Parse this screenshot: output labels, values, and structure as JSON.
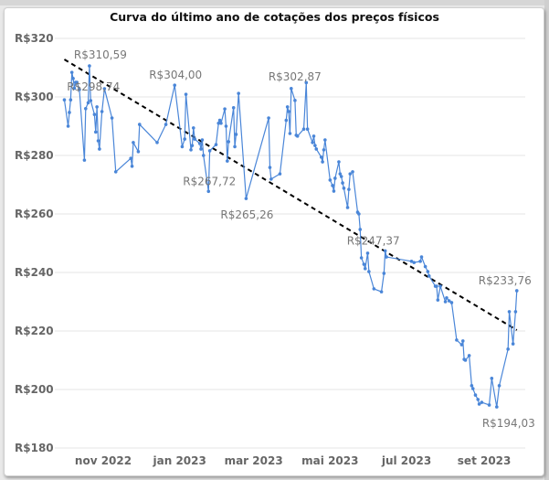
{
  "chart_data": {
    "type": "line",
    "title": "Curva do último ano de cotações dos preços físicos",
    "xlabel": "",
    "ylabel": "",
    "ylim": [
      180,
      320
    ],
    "y_ticks": [
      180,
      200,
      220,
      240,
      260,
      280,
      300,
      320
    ],
    "y_tick_labels": [
      "R$180",
      "R$200",
      "R$220",
      "R$240",
      "R$260",
      "R$280",
      "R$300",
      "R$320"
    ],
    "x_ticks": [
      {
        "date": "2022-11-01",
        "label": "nov 2022"
      },
      {
        "date": "2023-01-01",
        "label": "jan 2023"
      },
      {
        "date": "2023-03-01",
        "label": "mar 2023"
      },
      {
        "date": "2023-05-01",
        "label": "mai 2023"
      },
      {
        "date": "2023-07-01",
        "label": "jul 2023"
      },
      {
        "date": "2023-09-01",
        "label": "set 2023"
      }
    ],
    "grid": true,
    "colors": {
      "series": "#4a86d8",
      "trend": "#000000",
      "grid": "#e6e6e6"
    },
    "series": [
      {
        "points": [
          [
            "2022-10-01",
            299.0
          ],
          [
            "2022-10-04",
            290.0
          ],
          [
            "2022-10-05",
            294.7
          ],
          [
            "2022-10-06",
            299.0
          ],
          [
            "2022-10-07",
            308.4
          ],
          [
            "2022-10-08",
            306.3
          ],
          [
            "2022-10-09",
            303.0
          ],
          [
            "2022-10-10",
            305.0
          ],
          [
            "2022-10-11",
            305.0
          ],
          [
            "2022-10-13",
            302.5
          ],
          [
            "2022-10-17",
            278.4
          ],
          [
            "2022-10-18",
            296.0
          ],
          [
            "2022-10-20",
            298.0
          ],
          [
            "2022-10-21",
            310.59
          ],
          [
            "2022-10-22",
            298.74
          ],
          [
            "2022-10-25",
            294.0
          ],
          [
            "2022-10-26",
            288.0
          ],
          [
            "2022-10-27",
            296.6
          ],
          [
            "2022-10-28",
            285.0
          ],
          [
            "2022-10-29",
            282.2
          ],
          [
            "2022-10-31",
            295.0
          ],
          [
            "2022-11-02",
            302.8
          ],
          [
            "2022-11-08",
            292.8
          ],
          [
            "2022-11-11",
            274.4
          ],
          [
            "2022-11-23",
            279.0
          ],
          [
            "2022-11-24",
            276.3
          ],
          [
            "2022-11-25",
            284.4
          ],
          [
            "2022-11-29",
            281.3
          ],
          [
            "2022-11-30",
            290.6
          ],
          [
            "2022-12-14",
            284.4
          ],
          [
            "2022-12-21",
            290.6
          ],
          [
            "2022-12-28",
            304.0
          ],
          [
            "2023-01-03",
            283.0
          ],
          [
            "2023-01-05",
            285.6
          ],
          [
            "2023-01-06",
            300.9
          ],
          [
            "2023-01-10",
            281.9
          ],
          [
            "2023-01-11",
            283.4
          ],
          [
            "2023-01-12",
            289.4
          ],
          [
            "2023-01-13",
            285.6
          ],
          [
            "2023-01-17",
            284.1
          ],
          [
            "2023-01-18",
            282.2
          ],
          [
            "2023-01-19",
            285.3
          ],
          [
            "2023-01-20",
            280.0
          ],
          [
            "2023-01-24",
            267.72
          ],
          [
            "2023-01-25",
            281.6
          ],
          [
            "2023-01-30",
            283.7
          ],
          [
            "2023-02-01",
            291.0
          ],
          [
            "2023-02-02",
            292.0
          ],
          [
            "2023-02-03",
            291.0
          ],
          [
            "2023-02-06",
            295.9
          ],
          [
            "2023-02-07",
            290.0
          ],
          [
            "2023-02-08",
            278.1
          ],
          [
            "2023-02-09",
            284.7
          ],
          [
            "2023-02-13",
            296.3
          ],
          [
            "2023-02-14",
            283.0
          ],
          [
            "2023-02-15",
            287.2
          ],
          [
            "2023-02-17",
            301.2
          ],
          [
            "2023-02-23",
            265.26
          ],
          [
            "2023-03-13",
            292.8
          ],
          [
            "2023-03-14",
            275.9
          ],
          [
            "2023-03-15",
            271.9
          ],
          [
            "2023-03-22",
            273.7
          ],
          [
            "2023-03-27",
            292.0
          ],
          [
            "2023-03-28",
            296.6
          ],
          [
            "2023-03-29",
            295.0
          ],
          [
            "2023-03-30",
            287.5
          ],
          [
            "2023-03-31",
            302.87
          ],
          [
            "2023-04-03",
            298.8
          ],
          [
            "2023-04-04",
            286.9
          ],
          [
            "2023-04-05",
            286.6
          ],
          [
            "2023-04-10",
            289.0
          ],
          [
            "2023-04-12",
            304.9
          ],
          [
            "2023-04-13",
            289.0
          ],
          [
            "2023-04-17",
            284.4
          ],
          [
            "2023-04-18",
            286.6
          ],
          [
            "2023-04-19",
            283.4
          ],
          [
            "2023-04-20",
            282.2
          ],
          [
            "2023-04-24",
            279.4
          ],
          [
            "2023-04-25",
            277.8
          ],
          [
            "2023-04-26",
            281.9
          ],
          [
            "2023-04-27",
            285.3
          ],
          [
            "2023-05-01",
            271.6
          ],
          [
            "2023-05-03",
            269.7
          ],
          [
            "2023-05-04",
            267.8
          ],
          [
            "2023-05-05",
            272.2
          ],
          [
            "2023-05-08",
            277.8
          ],
          [
            "2023-05-09",
            273.7
          ],
          [
            "2023-05-10",
            272.8
          ],
          [
            "2023-05-11",
            270.6
          ],
          [
            "2023-05-12",
            268.8
          ],
          [
            "2023-05-15",
            262.2
          ],
          [
            "2023-05-16",
            268.4
          ],
          [
            "2023-05-17",
            273.7
          ],
          [
            "2023-05-19",
            274.4
          ],
          [
            "2023-05-23",
            260.6
          ],
          [
            "2023-05-24",
            260.0
          ],
          [
            "2023-05-25",
            254.7
          ],
          [
            "2023-05-26",
            245.0
          ],
          [
            "2023-05-28",
            242.8
          ],
          [
            "2023-05-29",
            241.3
          ],
          [
            "2023-05-31",
            246.6
          ],
          [
            "2023-06-01",
            240.3
          ],
          [
            "2023-06-05",
            234.4
          ],
          [
            "2023-06-11",
            233.4
          ],
          [
            "2023-06-13",
            239.7
          ],
          [
            "2023-06-14",
            247.37
          ],
          [
            "2023-06-15",
            245.3
          ],
          [
            "2023-07-05",
            243.8
          ],
          [
            "2023-07-07",
            243.4
          ],
          [
            "2023-07-12",
            243.8
          ],
          [
            "2023-07-13",
            245.3
          ],
          [
            "2023-07-16",
            242.0
          ],
          [
            "2023-07-18",
            240.3
          ],
          [
            "2023-07-19",
            238.8
          ],
          [
            "2023-07-24",
            235.3
          ],
          [
            "2023-07-25",
            235.3
          ],
          [
            "2023-07-26",
            230.6
          ],
          [
            "2023-07-28",
            235.3
          ],
          [
            "2023-08-01",
            230.0
          ],
          [
            "2023-08-02",
            231.3
          ],
          [
            "2023-08-04",
            230.3
          ],
          [
            "2023-08-06",
            229.7
          ],
          [
            "2023-08-10",
            216.9
          ],
          [
            "2023-08-14",
            215.3
          ],
          [
            "2023-08-15",
            216.6
          ],
          [
            "2023-08-16",
            210.3
          ],
          [
            "2023-08-17",
            210.0
          ],
          [
            "2023-08-20",
            211.6
          ],
          [
            "2023-08-22",
            201.3
          ],
          [
            "2023-08-23",
            200.3
          ],
          [
            "2023-08-25",
            198.1
          ],
          [
            "2023-08-27",
            196.6
          ],
          [
            "2023-08-28",
            195.0
          ],
          [
            "2023-08-30",
            195.6
          ],
          [
            "2023-09-05",
            194.7
          ],
          [
            "2023-09-07",
            203.8
          ],
          [
            "2023-09-11",
            194.03
          ],
          [
            "2023-09-13",
            201.3
          ],
          [
            "2023-09-20",
            213.8
          ],
          [
            "2023-09-21",
            226.6
          ],
          [
            "2023-09-24",
            215.6
          ],
          [
            "2023-09-26",
            226.6
          ],
          [
            "2023-09-27",
            233.76
          ]
        ]
      }
    ],
    "trendline": {
      "style": "dashed",
      "start": [
        "2022-10-01",
        312.8
      ],
      "end": [
        "2023-09-27",
        220.3
      ]
    },
    "data_labels": [
      {
        "date": "2022-10-21",
        "value": 310.59,
        "text": "R$310,59"
      },
      {
        "date": "2022-10-22",
        "value": 298.74,
        "text": "R$298,74"
      },
      {
        "date": "2022-12-28",
        "value": 304.0,
        "text": "R$304,00"
      },
      {
        "date": "2023-01-24",
        "value": 267.72,
        "text": "R$267,72"
      },
      {
        "date": "2023-02-23",
        "value": 265.26,
        "text": "R$265,26"
      },
      {
        "date": "2023-03-31",
        "value": 302.87,
        "text": "R$302,87"
      },
      {
        "date": "2023-06-14",
        "value": 247.37,
        "text": "R$247,37"
      },
      {
        "date": "2023-09-27",
        "value": 233.76,
        "text": "R$233,76"
      },
      {
        "date": "2023-09-11",
        "value": 194.03,
        "text": "R$194,03"
      }
    ]
  }
}
